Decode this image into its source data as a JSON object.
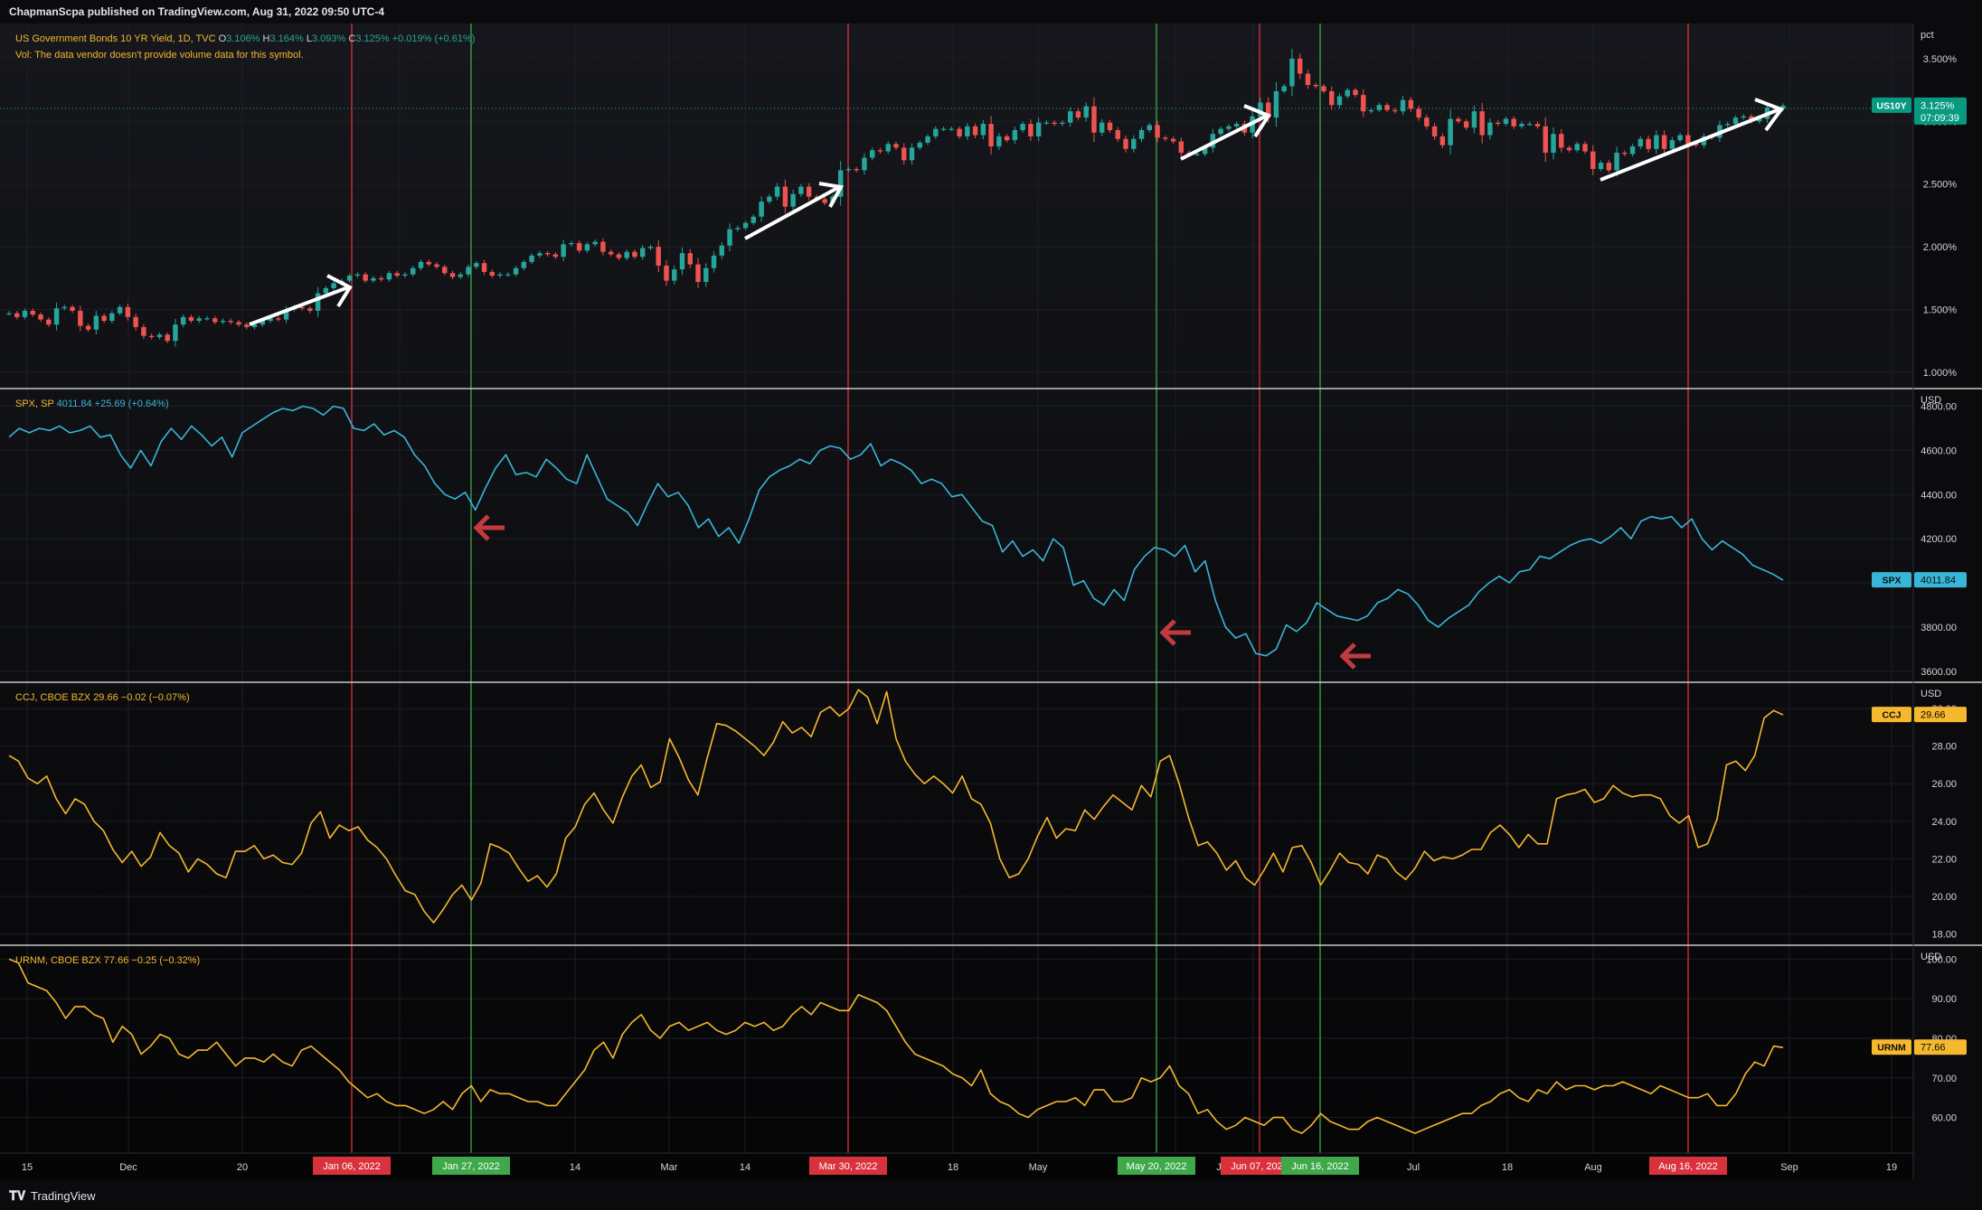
{
  "header": {
    "publisher": "ChapmanScpa published on TradingView.com, Aug 31, 2022 09:50 UTC-4"
  },
  "footer": {
    "brand": "TradingView"
  },
  "colors": {
    "background": "#0b0b0d",
    "up": "#26a69a",
    "down": "#ef5350",
    "spx": "#38b6d8",
    "ccj": "#f5b82e",
    "urnm": "#f5b82e",
    "red_line": "#d9323b",
    "green_line": "#3fa84a",
    "us10y_badge": "#089981",
    "arrow_white": "#ffffff",
    "arrow_red": "#c23a3f"
  },
  "chart_data": [
    {
      "type": "candlestick",
      "name": "US10Y",
      "title_parts": [
        "US Government Bonds 10 YR Yield, 1D, TVC",
        "O",
        "3.106%",
        "H",
        "3.164%",
        "L",
        "3.093%",
        "C",
        "3.125%",
        "+0.019% (+0.61%)"
      ],
      "subtitle": "Vol: The data vendor doesn't provide volume data for this symbol.",
      "unit_label": "pct",
      "y_ticks": [
        "1.000%",
        "1.500%",
        "2.000%",
        "2.500%",
        "3.000%",
        "3.500%"
      ],
      "y_tick_values": [
        1.0,
        1.5,
        2.0,
        2.5,
        3.0,
        3.5
      ],
      "ylim": [
        0.87,
        3.78
      ],
      "last_label": "US10Y",
      "last_value": "3.125%",
      "countdown": "07:09:39",
      "closes": [
        1.47,
        1.44,
        1.49,
        1.46,
        1.42,
        1.38,
        1.51,
        1.52,
        1.49,
        1.37,
        1.34,
        1.45,
        1.41,
        1.47,
        1.52,
        1.44,
        1.36,
        1.29,
        1.28,
        1.3,
        1.25,
        1.38,
        1.44,
        1.41,
        1.43,
        1.43,
        1.4,
        1.41,
        1.4,
        1.38,
        1.36,
        1.38,
        1.41,
        1.43,
        1.42,
        1.5,
        1.52,
        1.51,
        1.49,
        1.63,
        1.67,
        1.71,
        1.73,
        1.77,
        1.78,
        1.73,
        1.75,
        1.74,
        1.79,
        1.77,
        1.78,
        1.83,
        1.88,
        1.86,
        1.84,
        1.79,
        1.76,
        1.78,
        1.84,
        1.87,
        1.8,
        1.77,
        1.78,
        1.78,
        1.83,
        1.88,
        1.93,
        1.95,
        1.94,
        1.92,
        2.02,
        2.03,
        1.97,
        2.02,
        2.04,
        1.96,
        1.94,
        1.91,
        1.96,
        1.92,
        1.99,
        2.0,
        1.85,
        1.73,
        1.82,
        1.95,
        1.86,
        1.72,
        1.83,
        1.93,
        2.01,
        2.14,
        2.15,
        2.19,
        2.24,
        2.36,
        2.4,
        2.48,
        2.32,
        2.42,
        2.48,
        2.4,
        2.38,
        2.35,
        2.4,
        2.61,
        2.62,
        2.61,
        2.71,
        2.77,
        2.76,
        2.82,
        2.79,
        2.69,
        2.79,
        2.83,
        2.88,
        2.94,
        2.94,
        2.94,
        2.88,
        2.96,
        2.89,
        2.98,
        2.8,
        2.88,
        2.85,
        2.93,
        2.98,
        2.88,
        2.99,
        2.99,
        2.98,
        2.99,
        3.08,
        3.03,
        3.12,
        2.91,
        2.99,
        2.93,
        2.86,
        2.78,
        2.86,
        2.93,
        2.97,
        2.87,
        2.86,
        2.84,
        2.75,
        2.74,
        2.74,
        2.79,
        2.9,
        2.94,
        2.96,
        2.98,
        2.91,
        3.04,
        3.15,
        3.03,
        3.24,
        3.28,
        3.5,
        3.38,
        3.29,
        3.28,
        3.24,
        3.13,
        3.2,
        3.25,
        3.21,
        3.08,
        3.09,
        3.13,
        3.09,
        3.08,
        3.17,
        3.1,
        3.03,
        2.96,
        2.88,
        2.81,
        3.02,
        3.0,
        2.95,
        3.08,
        2.89,
        2.99,
        2.98,
        3.02,
        2.96,
        2.98,
        2.98,
        2.96,
        2.75,
        2.9,
        2.79,
        2.77,
        2.82,
        2.76,
        2.62,
        2.67,
        2.61,
        2.75,
        2.74,
        2.8,
        2.86,
        2.78,
        2.89,
        2.78,
        2.85,
        2.89,
        2.82,
        2.81,
        2.88,
        2.87,
        2.97,
        2.98,
        3.03,
        3.04,
        3.0,
        3.02,
        3.11,
        3.1,
        3.125
      ]
    },
    {
      "type": "line",
      "name": "SPX",
      "title_parts": [
        "SPX, SP",
        "4011.84",
        "+25.69 (+0.64%)"
      ],
      "unit_label": "USD",
      "y_ticks": [
        "3600.00",
        "3800.00",
        "4000.00",
        "4200.00",
        "4400.00",
        "4600.00",
        "4800.00"
      ],
      "y_tick_values": [
        3600,
        3800,
        4000,
        4200,
        4400,
        4600,
        4800
      ],
      "ylim": [
        3550,
        4880
      ],
      "last_label": "SPX",
      "last_value": "4011.84",
      "values": [
        4660,
        4700,
        4680,
        4700,
        4690,
        4710,
        4680,
        4690,
        4710,
        4660,
        4670,
        4580,
        4520,
        4600,
        4530,
        4640,
        4700,
        4650,
        4710,
        4670,
        4620,
        4660,
        4570,
        4680,
        4710,
        4740,
        4770,
        4790,
        4780,
        4800,
        4790,
        4760,
        4800,
        4790,
        4700,
        4690,
        4720,
        4670,
        4690,
        4660,
        4580,
        4530,
        4450,
        4400,
        4380,
        4410,
        4330,
        4430,
        4520,
        4580,
        4490,
        4500,
        4480,
        4560,
        4520,
        4470,
        4450,
        4580,
        4480,
        4380,
        4350,
        4320,
        4260,
        4360,
        4450,
        4390,
        4410,
        4350,
        4250,
        4290,
        4210,
        4250,
        4180,
        4290,
        4420,
        4480,
        4510,
        4530,
        4560,
        4540,
        4600,
        4620,
        4610,
        4560,
        4580,
        4630,
        4530,
        4560,
        4540,
        4510,
        4450,
        4470,
        4450,
        4390,
        4400,
        4340,
        4280,
        4260,
        4140,
        4190,
        4120,
        4150,
        4100,
        4200,
        4160,
        3990,
        4010,
        3930,
        3900,
        3970,
        3920,
        4060,
        4120,
        4160,
        4150,
        4120,
        4170,
        4050,
        4100,
        3920,
        3800,
        3750,
        3770,
        3680,
        3670,
        3700,
        3810,
        3780,
        3820,
        3910,
        3880,
        3850,
        3840,
        3830,
        3850,
        3910,
        3930,
        3970,
        3950,
        3900,
        3830,
        3800,
        3840,
        3870,
        3900,
        3960,
        4000,
        4030,
        4000,
        4050,
        4060,
        4120,
        4110,
        4140,
        4170,
        4190,
        4200,
        4180,
        4210,
        4250,
        4200,
        4280,
        4300,
        4290,
        4300,
        4250,
        4290,
        4200,
        4150,
        4190,
        4160,
        4130,
        4080,
        4060,
        4040,
        4011.84
      ]
    },
    {
      "type": "line",
      "name": "CCJ",
      "title_parts": [
        "CCJ, CBOE BZX",
        "29.66",
        "−0.02 (−0.07%)"
      ],
      "unit_label": "USD",
      "y_ticks": [
        "18.00",
        "20.00",
        "22.00",
        "24.00",
        "26.00",
        "28.00",
        "30.00"
      ],
      "y_tick_values": [
        18,
        20,
        22,
        24,
        26,
        28,
        30
      ],
      "ylim": [
        17.4,
        31.4
      ],
      "last_label": "CCJ",
      "last_value": "29.66",
      "values": [
        27.5,
        27.2,
        26.3,
        26.0,
        26.4,
        25.2,
        24.4,
        25.2,
        24.9,
        24.0,
        23.5,
        22.5,
        21.8,
        22.4,
        21.6,
        22.1,
        23.4,
        22.7,
        22.3,
        21.3,
        22.0,
        21.7,
        21.2,
        21.0,
        22.4,
        22.4,
        22.7,
        22.0,
        22.2,
        21.8,
        21.7,
        22.3,
        23.9,
        24.5,
        23.1,
        23.8,
        23.5,
        23.7,
        23.0,
        22.6,
        22.0,
        21.1,
        20.3,
        20.1,
        19.2,
        18.6,
        19.3,
        20.1,
        20.6,
        19.8,
        20.7,
        22.8,
        22.6,
        22.3,
        21.5,
        20.8,
        21.1,
        20.5,
        21.2,
        23.1,
        23.7,
        24.9,
        25.5,
        24.6,
        23.9,
        25.3,
        26.4,
        27.0,
        25.8,
        26.1,
        28.4,
        27.4,
        26.2,
        25.4,
        27.4,
        29.2,
        29.1,
        28.8,
        28.4,
        28.0,
        27.5,
        28.2,
        29.3,
        28.7,
        29.0,
        28.5,
        29.8,
        30.1,
        29.6,
        30.0,
        31.0,
        30.6,
        29.2,
        30.9,
        28.4,
        27.2,
        26.5,
        26.0,
        26.4,
        26.0,
        25.5,
        26.4,
        25.2,
        24.9,
        23.9,
        22.0,
        21.0,
        21.2,
        22.0,
        23.2,
        24.2,
        23.1,
        23.6,
        23.5,
        24.6,
        24.1,
        24.8,
        25.4,
        25.0,
        24.6,
        25.9,
        25.3,
        27.2,
        27.5,
        26.0,
        24.2,
        22.7,
        22.9,
        22.3,
        21.4,
        21.9,
        21.0,
        20.6,
        21.4,
        22.3,
        21.3,
        22.6,
        22.7,
        21.8,
        20.6,
        21.4,
        22.3,
        21.8,
        21.7,
        21.2,
        22.2,
        22.0,
        21.3,
        20.9,
        21.5,
        22.4,
        21.9,
        22.1,
        22.0,
        22.2,
        22.5,
        22.5,
        23.4,
        23.8,
        23.3,
        22.6,
        23.3,
        22.8,
        22.8,
        25.2,
        25.4,
        25.5,
        25.7,
        25.0,
        25.2,
        25.9,
        25.5,
        25.3,
        25.4,
        25.4,
        25.2,
        24.3,
        23.9,
        24.3,
        22.6,
        22.8,
        24.1,
        27.0,
        27.2,
        26.7,
        27.5,
        29.5,
        29.9,
        29.66
      ]
    },
    {
      "type": "line",
      "name": "URNM",
      "title_parts": [
        "URNM, CBOE BZX",
        "77.66",
        "−0.25 (−0.32%)"
      ],
      "unit_label": "USD",
      "y_ticks": [
        "60.00",
        "70.00",
        "80.00",
        "90.00",
        "100.00"
      ],
      "y_tick_values": [
        60,
        70,
        80,
        90,
        100
      ],
      "ylim": [
        51,
        103.5
      ],
      "last_label": "URNM",
      "last_value": "77.66",
      "values": [
        100,
        99,
        94,
        93,
        92,
        89,
        85,
        88,
        88,
        86,
        85,
        79,
        83,
        81,
        76,
        78,
        81,
        80,
        76,
        75,
        77,
        77,
        79,
        76,
        73,
        75,
        75,
        74,
        76,
        74,
        73,
        77,
        78,
        76,
        74,
        72,
        69,
        67,
        65,
        66,
        64,
        63,
        63,
        62,
        61,
        62,
        64,
        62,
        66,
        68,
        64,
        67,
        66,
        66,
        65,
        64,
        64,
        63,
        63,
        66,
        69,
        72,
        77,
        79,
        75,
        81,
        84,
        86,
        82,
        80,
        83,
        84,
        82,
        83,
        84,
        82,
        81,
        82,
        84,
        83,
        84,
        82,
        83,
        86,
        88,
        86,
        89,
        88,
        87,
        87,
        91,
        90,
        89,
        87,
        83,
        79,
        76,
        75,
        74,
        73,
        71,
        70,
        68,
        72,
        66,
        64,
        63,
        61,
        60,
        62,
        63,
        64,
        64,
        65,
        63,
        67,
        67,
        64,
        64,
        65,
        70,
        69,
        70,
        73,
        68,
        66,
        61,
        62,
        59,
        57,
        58,
        60,
        59,
        58,
        60,
        60,
        57,
        56,
        58,
        61,
        59,
        58,
        57,
        57,
        59,
        60,
        59,
        58,
        57,
        56,
        57,
        58,
        59,
        60,
        61,
        61,
        63,
        64,
        66,
        67,
        65,
        64,
        67,
        66,
        69,
        67,
        68,
        68,
        67,
        68,
        68,
        69,
        68,
        67,
        66,
        68,
        67,
        66,
        65,
        65,
        66,
        63,
        63,
        66,
        71,
        74,
        73,
        78,
        77.66
      ]
    }
  ],
  "time_axis": {
    "labels": [
      "15",
      "Dec",
      "20",
      "14",
      "Mar",
      "14",
      "18",
      "May",
      "J",
      "Jul",
      "18",
      "Aug",
      "Sep",
      "19"
    ],
    "marker_dates": [
      "Jan 06, 2022",
      "Jan 27, 2022",
      "Mar 30, 2022",
      "May 20, 2022",
      "Jun 07, 2022",
      "Jun 16, 2022",
      "Aug 16, 2022"
    ]
  }
}
